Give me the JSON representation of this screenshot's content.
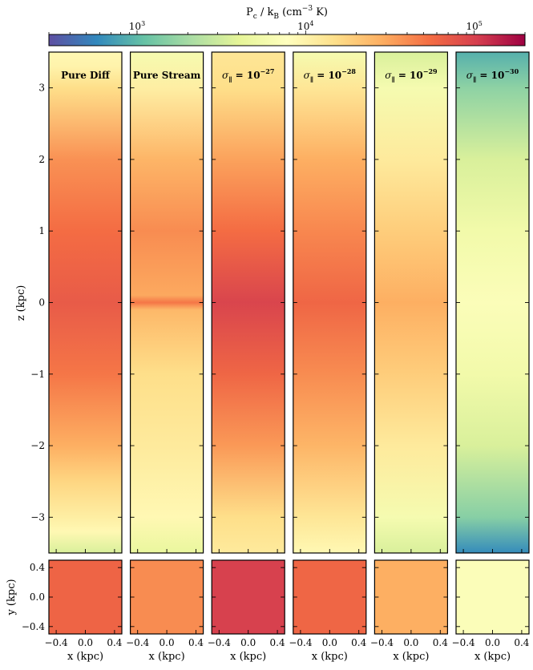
{
  "chart_data": {
    "type": "heatmap",
    "colorbar": {
      "title": "P_c / k_B (cm^-3 K)",
      "title_main": "P",
      "title_sub": "c",
      "title_mid": " / k",
      "title_sub2": "B",
      "title_tail1": " (cm",
      "title_sup": "−3",
      "title_tail2": " K)",
      "scale": "log",
      "range": [
        300,
        200000
      ],
      "ticks": [
        {
          "value": 1000,
          "base": "10",
          "exp": "3"
        },
        {
          "value": 10000,
          "base": "10",
          "exp": "4"
        },
        {
          "value": 100000,
          "base": "10",
          "exp": "5"
        }
      ],
      "colormap": [
        "#5e4fa2",
        "#3288bd",
        "#66c2a5",
        "#abdda4",
        "#e6f598",
        "#ffffbf",
        "#fee08b",
        "#fdae61",
        "#f46d43",
        "#d53e4f",
        "#9e0142"
      ]
    },
    "panels": [
      {
        "name": "pure-diff",
        "title": "Pure Diff",
        "z_profile": [
          [
            -3.5,
            3500
          ],
          [
            -3.2,
            9000
          ],
          [
            -3.0,
            11000
          ],
          [
            -2.5,
            17000
          ],
          [
            -2.0,
            28000
          ],
          [
            -1.0,
            50000
          ],
          [
            0.0,
            70000
          ],
          [
            1.0,
            55000
          ],
          [
            2.0,
            38000
          ],
          [
            3.0,
            15000
          ],
          [
            3.3,
            10000
          ],
          [
            3.5,
            9000
          ]
        ],
        "xy_mean": 62000
      },
      {
        "name": "pure-stream",
        "title": "Pure Stream",
        "z_profile": [
          [
            -3.5,
            4500
          ],
          [
            -3.0,
            9000
          ],
          [
            -2.0,
            12000
          ],
          [
            -1.0,
            15000
          ],
          [
            -0.1,
            25000
          ],
          [
            0.0,
            50000
          ],
          [
            0.1,
            30000
          ],
          [
            1.0,
            40000
          ],
          [
            2.0,
            26000
          ],
          [
            3.0,
            11000
          ],
          [
            3.5,
            6000
          ]
        ],
        "xy_mean": 40000
      },
      {
        "name": "sigma-27",
        "title_base": "σ",
        "title_sub": "∥",
        "title_mid": " = 10",
        "title_sup": "−27",
        "z_profile": [
          [
            -3.5,
            12000
          ],
          [
            -3.0,
            15000
          ],
          [
            -2.0,
            35000
          ],
          [
            -1.0,
            60000
          ],
          [
            0.0,
            95000
          ],
          [
            1.0,
            55000
          ],
          [
            2.0,
            32000
          ],
          [
            3.0,
            15000
          ],
          [
            3.5,
            13000
          ]
        ],
        "xy_mean": 100000
      },
      {
        "name": "sigma-28",
        "title_base": "σ",
        "title_sub": "∥",
        "title_mid": " = 10",
        "title_sup": "−28",
        "z_profile": [
          [
            -3.5,
            9000
          ],
          [
            -3.0,
            13000
          ],
          [
            -2.0,
            26000
          ],
          [
            -1.0,
            40000
          ],
          [
            0.0,
            60000
          ],
          [
            1.0,
            42000
          ],
          [
            2.0,
            28000
          ],
          [
            3.0,
            13000
          ],
          [
            3.5,
            6000
          ]
        ],
        "xy_mean": 60000
      },
      {
        "name": "sigma-29",
        "title_base": "σ",
        "title_sub": "∥",
        "title_mid": " = 10",
        "title_sup": "−29",
        "z_profile": [
          [
            -3.5,
            3500
          ],
          [
            -3.0,
            6000
          ],
          [
            -2.0,
            12000
          ],
          [
            -1.0,
            19000
          ],
          [
            0.0,
            28000
          ],
          [
            1.0,
            19000
          ],
          [
            2.0,
            12000
          ],
          [
            3.0,
            6000
          ],
          [
            3.5,
            3500
          ]
        ],
        "xy_mean": 28000
      },
      {
        "name": "sigma-30",
        "title_base": "σ",
        "title_sub": "∥",
        "title_mid": " = 10",
        "title_sup": "−30",
        "z_profile": [
          [
            -3.5,
            600
          ],
          [
            -3.0,
            1500
          ],
          [
            -2.0,
            3500
          ],
          [
            -1.0,
            5500
          ],
          [
            0.0,
            7000
          ],
          [
            1.0,
            5500
          ],
          [
            2.0,
            3500
          ],
          [
            3.0,
            1600
          ],
          [
            3.5,
            900
          ]
        ],
        "xy_mean": 7000
      }
    ],
    "main_axes": {
      "ylabel": "z (kpc)",
      "ylim": [
        -3.5,
        3.5
      ],
      "yticks": [
        {
          "value": 3,
          "label": "3"
        },
        {
          "value": 2,
          "label": "2"
        },
        {
          "value": 1,
          "label": "1"
        },
        {
          "value": 0,
          "label": "0"
        },
        {
          "value": -1,
          "label": "−1"
        },
        {
          "value": -2,
          "label": "−2"
        },
        {
          "value": -3,
          "label": "−3"
        }
      ]
    },
    "slice_axes": {
      "ylabel": "y (kpc)",
      "xlabel": "x (kpc)",
      "xlim": [
        -0.5,
        0.5
      ],
      "ylim": [
        -0.5,
        0.5
      ],
      "yticks": [
        {
          "value": 0.4,
          "label": "0.4"
        },
        {
          "value": 0.0,
          "label": "0.0"
        },
        {
          "value": -0.4,
          "label": "−0.4"
        }
      ],
      "xticks": [
        {
          "value": -0.4,
          "label": "−0.4"
        },
        {
          "value": 0.0,
          "label": "0.0"
        },
        {
          "value": 0.4,
          "label": "0.4"
        }
      ]
    }
  }
}
